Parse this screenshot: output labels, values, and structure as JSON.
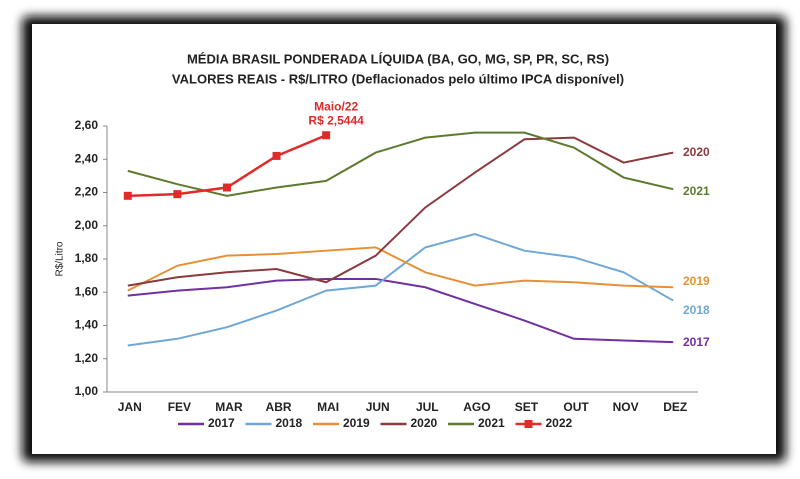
{
  "chart_data": {
    "type": "line",
    "title": "MÉDIA BRASIL PONDERADA LÍQUIDA (BA, GO, MG, SP, PR, SC, RS)",
    "subtitle": "VALORES REAIS - R$/LITRO (Deflacionados pelo último IPCA disponível)",
    "y_label": "R$/Litro",
    "categories": [
      "JAN",
      "FEV",
      "MAR",
      "ABR",
      "MAI",
      "JUN",
      "JUL",
      "AGO",
      "SET",
      "OUT",
      "NOV",
      "DEZ"
    ],
    "series": [
      {
        "name": "2017",
        "color": "#7030a0",
        "values": [
          1.58,
          1.61,
          1.63,
          1.67,
          1.68,
          1.68,
          1.63,
          1.53,
          1.43,
          1.32,
          1.31,
          1.3
        ]
      },
      {
        "name": "2018",
        "color": "#6fa8d6",
        "values": [
          1.28,
          1.32,
          1.39,
          1.49,
          1.61,
          1.64,
          1.87,
          1.95,
          1.85,
          1.81,
          1.72,
          1.55
        ]
      },
      {
        "name": "2019",
        "color": "#e69138",
        "values": [
          1.61,
          1.76,
          1.82,
          1.83,
          1.85,
          1.87,
          1.72,
          1.64,
          1.67,
          1.66,
          1.64,
          1.63
        ]
      },
      {
        "name": "2020",
        "color": "#8b3a3e",
        "values": [
          1.64,
          1.69,
          1.72,
          1.74,
          1.66,
          1.82,
          2.11,
          2.32,
          2.52,
          2.53,
          2.38,
          2.44
        ]
      },
      {
        "name": "2021",
        "color": "#5e7a2e",
        "values": [
          2.33,
          2.25,
          2.18,
          2.23,
          2.27,
          2.44,
          2.53,
          2.56,
          2.56,
          2.47,
          2.29,
          2.22
        ]
      },
      {
        "name": "2022",
        "color": "#e02b2b",
        "values": [
          2.18,
          2.19,
          2.23,
          2.42,
          2.5444,
          null,
          null,
          null,
          null,
          null,
          null,
          null
        ]
      }
    ],
    "annotation": {
      "title": "Maio/22",
      "label": "R$ 2,5444"
    },
    "ylim": [
      1.0,
      2.6
    ],
    "yticks": [
      {
        "value": 1.0,
        "label": "1,00"
      },
      {
        "value": 1.2,
        "label": "1,20"
      },
      {
        "value": 1.4,
        "label": "1,40"
      },
      {
        "value": 1.6,
        "label": "1,60"
      },
      {
        "value": 1.8,
        "label": "1,80"
      },
      {
        "value": 2.0,
        "label": "2,00"
      },
      {
        "value": 2.2,
        "label": "2,20"
      },
      {
        "value": 2.4,
        "label": "2,40"
      },
      {
        "value": 2.6,
        "label": "2,60"
      }
    ],
    "legend": "bottom",
    "grid": false
  }
}
